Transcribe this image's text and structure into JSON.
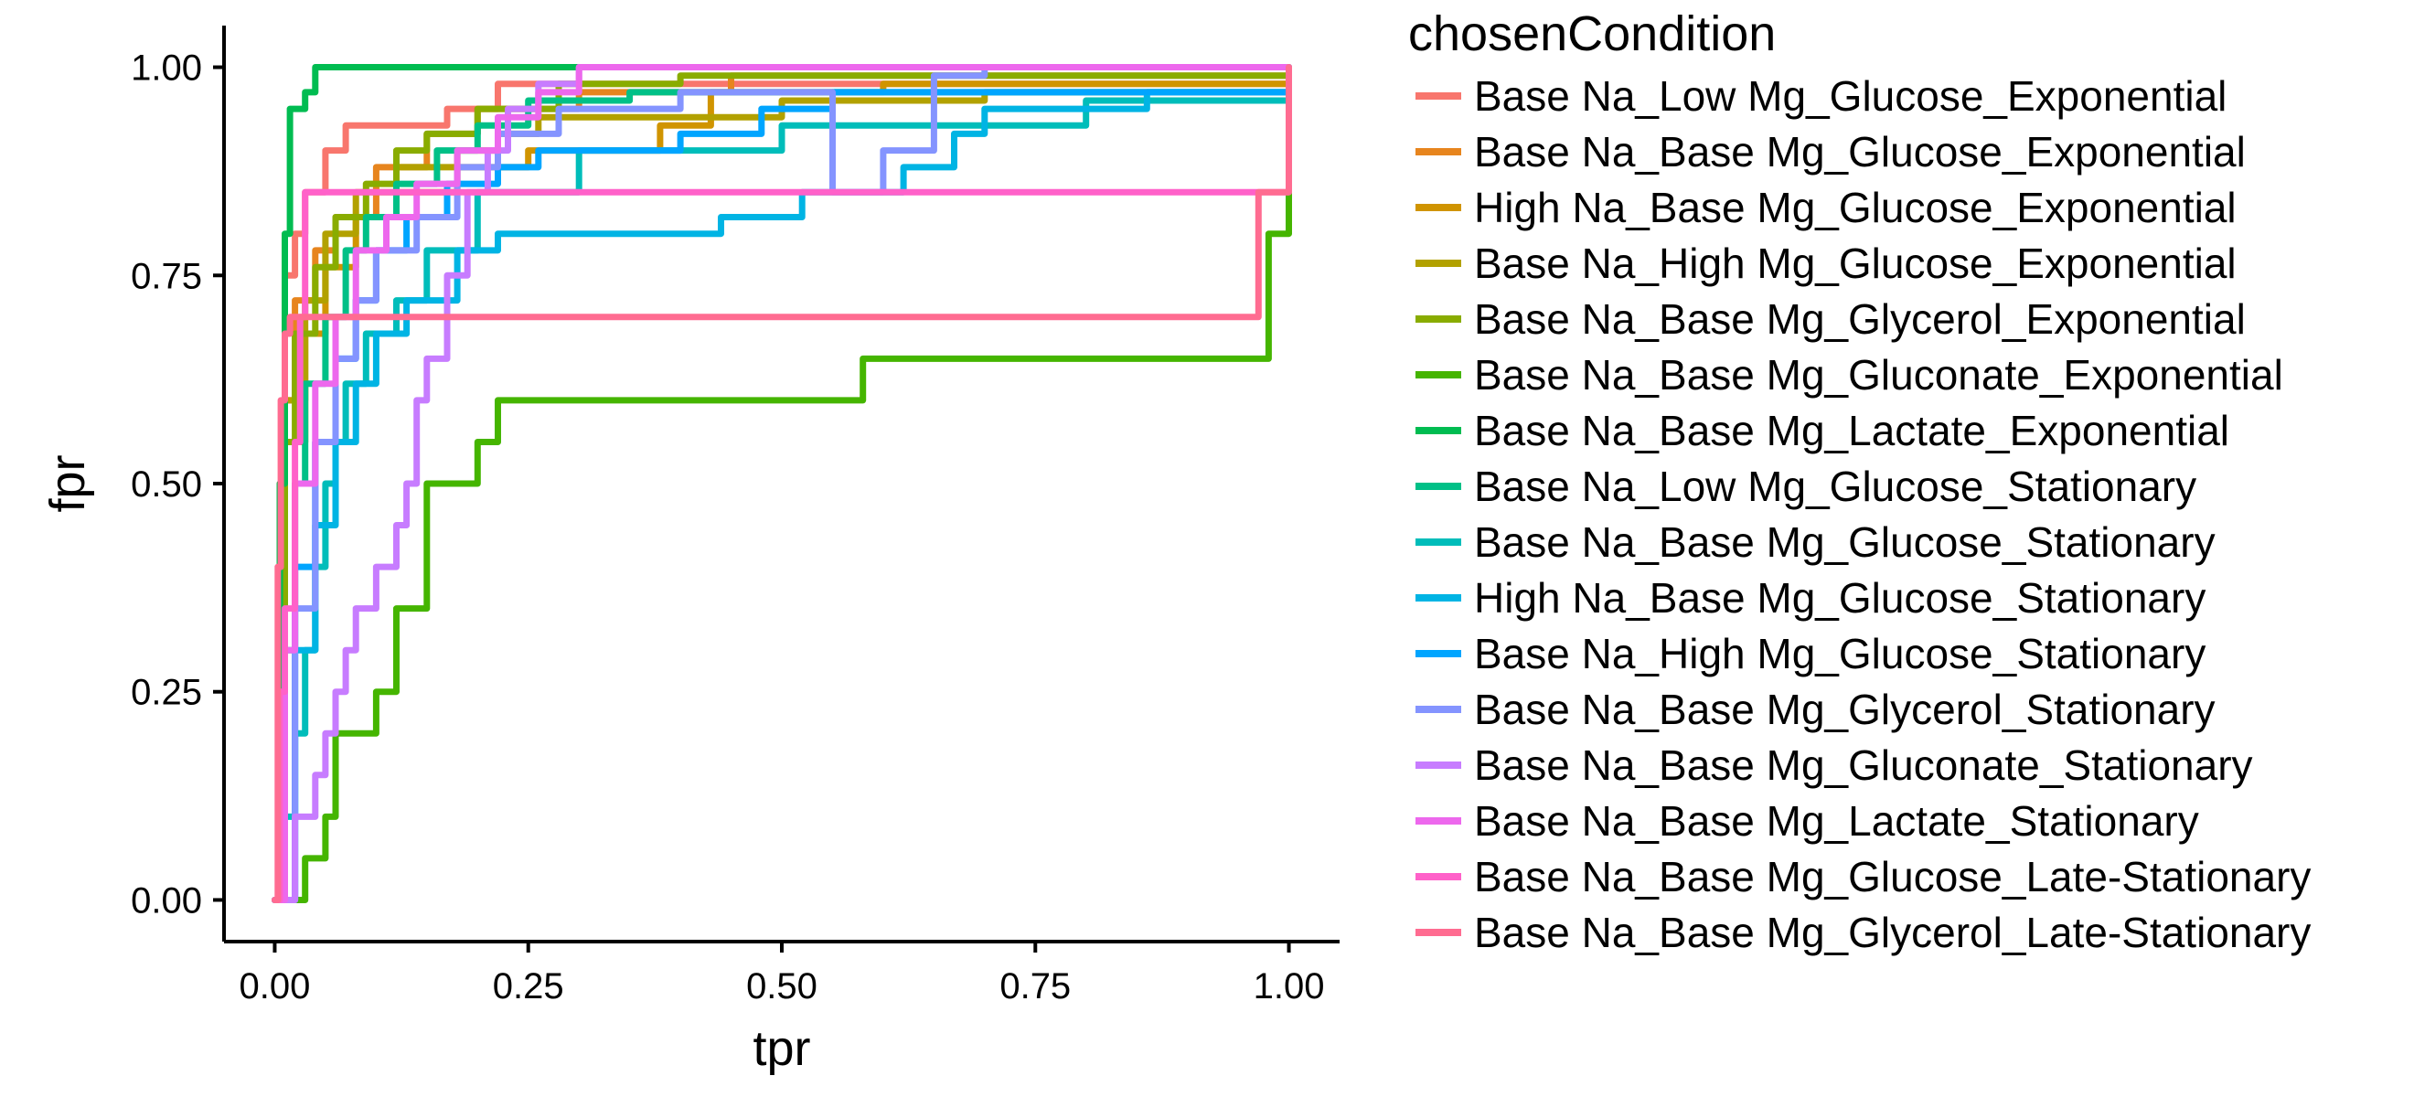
{
  "chart_data": {
    "type": "line",
    "xlabel": "tpr",
    "ylabel": "fpr",
    "xlim": [
      -0.05,
      1.05
    ],
    "ylim": [
      -0.05,
      1.05
    ],
    "xticks": [
      "0.00",
      "0.25",
      "0.50",
      "0.75",
      "1.00"
    ],
    "yticks": [
      "0.00",
      "0.25",
      "0.50",
      "0.75",
      "1.00"
    ],
    "xtick_values": [
      0,
      0.25,
      0.5,
      0.75,
      1
    ],
    "ytick_values": [
      0,
      0.25,
      0.5,
      0.75,
      1
    ],
    "grid": false,
    "legend": {
      "title": "chosenCondition",
      "position": "right"
    },
    "series": [
      {
        "name": "Base Na_Low Mg_Glucose_Exponential",
        "color": "#F8766D",
        "x": [
          0,
          0.005,
          0.01,
          0.02,
          0.03,
          0.05,
          0.07,
          0.09,
          0.12,
          0.17,
          0.22,
          0.26,
          0.3,
          0.5,
          1.0
        ],
        "y": [
          0,
          0.5,
          0.75,
          0.8,
          0.85,
          0.9,
          0.93,
          0.93,
          0.93,
          0.95,
          0.98,
          0.98,
          0.98,
          0.98,
          1.0
        ]
      },
      {
        "name": "Base Na_Base Mg_Glucose_Exponential",
        "color": "#E7851E",
        "x": [
          0,
          0.01,
          0.02,
          0.04,
          0.06,
          0.1,
          0.15,
          0.2,
          0.3,
          0.45,
          0.6,
          1.0
        ],
        "y": [
          0,
          0.6,
          0.72,
          0.78,
          0.82,
          0.88,
          0.92,
          0.95,
          0.97,
          0.99,
          0.99,
          1.0
        ]
      },
      {
        "name": "High Na_Base Mg_Glucose_Exponential",
        "color": "#D09400",
        "x": [
          0,
          0.01,
          0.03,
          0.05,
          0.08,
          0.12,
          0.18,
          0.25,
          0.3,
          0.35,
          0.38,
          0.43,
          0.5,
          0.6,
          0.8,
          1.0
        ],
        "y": [
          0,
          0.55,
          0.68,
          0.76,
          0.82,
          0.85,
          0.88,
          0.9,
          0.9,
          0.9,
          0.93,
          0.97,
          0.97,
          0.98,
          0.98,
          1.0
        ]
      },
      {
        "name": "Base Na_High Mg_Glucose_Exponential",
        "color": "#B2A100",
        "x": [
          0,
          0.01,
          0.03,
          0.05,
          0.08,
          0.12,
          0.18,
          0.22,
          0.26,
          0.5,
          0.7,
          1.0
        ],
        "y": [
          0,
          0.6,
          0.72,
          0.8,
          0.85,
          0.88,
          0.9,
          0.92,
          0.94,
          0.96,
          0.97,
          1.0
        ]
      },
      {
        "name": "Base Na_Base Mg_Glycerol_Exponential",
        "color": "#89AC00",
        "x": [
          0,
          0.01,
          0.02,
          0.04,
          0.06,
          0.09,
          0.12,
          0.15,
          0.2,
          0.28,
          0.4,
          0.6,
          1.0
        ],
        "y": [
          0,
          0.55,
          0.68,
          0.76,
          0.82,
          0.86,
          0.9,
          0.92,
          0.95,
          0.98,
          0.99,
          0.99,
          1.0
        ]
      },
      {
        "name": "Base Na_Base Mg_Gluconate_Exponential",
        "color": "#45B500",
        "x": [
          0,
          0.01,
          0.02,
          0.03,
          0.04,
          0.05,
          0.06,
          0.08,
          0.1,
          0.12,
          0.13,
          0.15,
          0.19,
          0.2,
          0.22,
          0.51,
          0.58,
          0.97,
          0.98,
          1.0
        ],
        "y": [
          0,
          0,
          0,
          0.05,
          0.05,
          0.1,
          0.2,
          0.2,
          0.25,
          0.35,
          0.35,
          0.5,
          0.5,
          0.55,
          0.6,
          0.6,
          0.65,
          0.65,
          0.8,
          1.0
        ]
      },
      {
        "name": "Base Na_Base Mg_Lactate_Exponential",
        "color": "#00BC51",
        "x": [
          0,
          0.005,
          0.01,
          0.015,
          0.02,
          0.03,
          0.04,
          0.1,
          0.25,
          0.5,
          1.0
        ],
        "y": [
          0,
          0.5,
          0.8,
          0.95,
          0.95,
          0.97,
          1.0,
          1.0,
          1.0,
          1.0,
          1.0
        ]
      },
      {
        "name": "Base Na_Low Mg_Glucose_Stationary",
        "color": "#00C087",
        "x": [
          0,
          0.01,
          0.02,
          0.03,
          0.05,
          0.07,
          0.09,
          0.12,
          0.16,
          0.2,
          0.25,
          0.35,
          0.6,
          1.0
        ],
        "y": [
          0,
          0.3,
          0.5,
          0.62,
          0.7,
          0.78,
          0.82,
          0.86,
          0.9,
          0.93,
          0.96,
          0.97,
          0.97,
          1.0
        ]
      },
      {
        "name": "Base Na_Base Mg_Glucose_Stationary",
        "color": "#00BDBA",
        "x": [
          0,
          0.01,
          0.02,
          0.03,
          0.04,
          0.05,
          0.06,
          0.07,
          0.09,
          0.12,
          0.15,
          0.2,
          0.3,
          0.5,
          0.8,
          1.0
        ],
        "y": [
          0,
          0.1,
          0.2,
          0.3,
          0.4,
          0.5,
          0.55,
          0.62,
          0.68,
          0.72,
          0.78,
          0.85,
          0.9,
          0.93,
          0.96,
          1.0
        ]
      },
      {
        "name": "High Na_Base Mg_Glucose_Stationary",
        "color": "#00B4E4",
        "x": [
          0,
          0.02,
          0.04,
          0.06,
          0.08,
          0.1,
          0.13,
          0.18,
          0.22,
          0.38,
          0.44,
          0.5,
          0.52,
          0.62,
          0.67,
          0.7,
          0.81,
          0.86,
          0.97,
          1.0
        ],
        "y": [
          0,
          0.3,
          0.45,
          0.55,
          0.62,
          0.68,
          0.72,
          0.78,
          0.8,
          0.8,
          0.82,
          0.82,
          0.85,
          0.88,
          0.92,
          0.95,
          0.95,
          0.97,
          0.97,
          1.0
        ]
      },
      {
        "name": "Base Na_High Mg_Glucose_Stationary",
        "color": "#00A5FF",
        "x": [
          0,
          0.02,
          0.04,
          0.06,
          0.08,
          0.1,
          0.13,
          0.17,
          0.22,
          0.26,
          0.3,
          0.4,
          0.48,
          0.55,
          0.7,
          1.0
        ],
        "y": [
          0,
          0.4,
          0.55,
          0.65,
          0.72,
          0.78,
          0.82,
          0.86,
          0.88,
          0.9,
          0.9,
          0.92,
          0.95,
          0.97,
          0.97,
          1.0
        ]
      },
      {
        "name": "Base Na_Base Mg_Glycerol_Stationary",
        "color": "#8494FF",
        "x": [
          0,
          0.02,
          0.04,
          0.06,
          0.08,
          0.1,
          0.14,
          0.18,
          0.22,
          0.28,
          0.4,
          0.52,
          0.55,
          0.6,
          0.65,
          0.7,
          1.0
        ],
        "y": [
          0,
          0.35,
          0.55,
          0.65,
          0.72,
          0.78,
          0.82,
          0.88,
          0.92,
          0.95,
          0.97,
          0.97,
          0.85,
          0.9,
          0.99,
          1.0,
          1.0
        ]
      },
      {
        "name": "Base Na_Base Mg_Gluconate_Stationary",
        "color": "#C77CFF",
        "x": [
          0,
          0.02,
          0.04,
          0.05,
          0.06,
          0.07,
          0.08,
          0.1,
          0.12,
          0.13,
          0.14,
          0.15,
          0.17,
          0.19,
          0.21,
          0.23,
          0.26,
          0.3,
          0.5,
          1.0
        ],
        "y": [
          0,
          0.1,
          0.15,
          0.2,
          0.25,
          0.3,
          0.35,
          0.4,
          0.45,
          0.5,
          0.6,
          0.65,
          0.75,
          0.85,
          0.9,
          0.95,
          0.98,
          1.0,
          1.0,
          1.0
        ]
      },
      {
        "name": "Base Na_Base Mg_Lactate_Stationary",
        "color": "#ED68ED",
        "x": [
          0,
          0.01,
          0.02,
          0.04,
          0.06,
          0.08,
          0.11,
          0.14,
          0.18,
          0.22,
          0.26,
          0.3,
          0.5,
          1.0
        ],
        "y": [
          0,
          0.3,
          0.5,
          0.62,
          0.7,
          0.78,
          0.82,
          0.86,
          0.9,
          0.94,
          0.97,
          1.0,
          1.0,
          1.0
        ]
      },
      {
        "name": "Base Na_Base Mg_Glucose_Late-Stationary",
        "color": "#FF61C9",
        "x": [
          0,
          0.005,
          0.01,
          0.015,
          0.02,
          0.025,
          0.03,
          0.035,
          0.5,
          0.98,
          0.99,
          1.0
        ],
        "y": [
          0,
          0.25,
          0.35,
          0.35,
          0.55,
          0.7,
          0.85,
          0.85,
          0.85,
          0.85,
          0.85,
          1.0
        ]
      },
      {
        "name": "Base Na_Base Mg_Glycerol_Late-Stationary",
        "color": "#FF6C91",
        "x": [
          0,
          0.003,
          0.006,
          0.01,
          0.015,
          0.02,
          0.5,
          0.96,
          0.97,
          1.0
        ],
        "y": [
          0,
          0.4,
          0.6,
          0.68,
          0.7,
          0.7,
          0.7,
          0.7,
          0.85,
          1.0
        ]
      }
    ]
  }
}
